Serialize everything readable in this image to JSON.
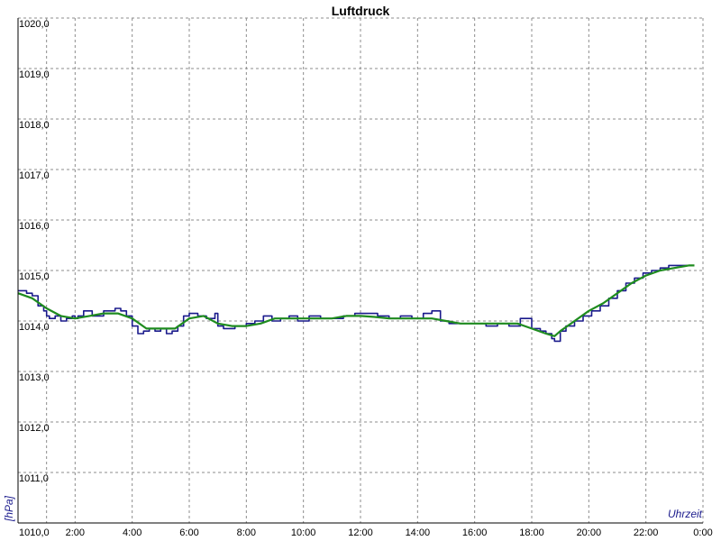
{
  "chart_data": {
    "type": "line",
    "title": "Luftdruck",
    "ylabel": "[hPa]",
    "xlabel": "Uhrzeit",
    "x_tick_labels": [
      "2:00",
      "4:00",
      "6:00",
      "8:00",
      "10:00",
      "12:00",
      "14:00",
      "16:00",
      "18:00",
      "20:00",
      "22:00",
      "0:00"
    ],
    "y_tick_labels": [
      "1010,0",
      "1011,0",
      "1012,0",
      "1013,0",
      "1014,0",
      "1015,0",
      "1016,0",
      "1017,0",
      "1018,0",
      "1019,0",
      "1020,0"
    ],
    "xlim": [
      0,
      24
    ],
    "ylim": [
      1010,
      1020
    ],
    "grid": true,
    "colors": {
      "raw": "#1a1a8c",
      "smooth": "#1f8c1f",
      "grid": "#8c8c8c"
    },
    "series": [
      {
        "x": [
          0,
          0.3,
          0.5,
          0.7,
          0.9,
          1.0,
          1.1,
          1.3,
          1.5,
          1.7,
          1.9,
          2.0,
          2.1,
          2.3,
          2.6,
          3.0,
          3.4,
          3.6,
          3.8,
          4.0,
          4.2,
          4.4,
          4.6,
          4.8,
          5.0,
          5.2,
          5.4,
          5.6,
          5.8,
          6.0,
          6.3,
          6.6,
          6.9,
          7.0,
          7.2,
          7.6,
          8.0,
          8.3,
          8.6,
          8.9,
          9.2,
          9.5,
          9.8,
          10.2,
          10.6,
          11.0,
          11.4,
          11.8,
          12.2,
          12.6,
          13.0,
          13.4,
          13.8,
          14.2,
          14.5,
          14.8,
          15.1,
          15.4,
          15.8,
          16.0,
          16.4,
          16.8,
          17.2,
          17.6,
          18.0,
          18.3,
          18.5,
          18.7,
          18.8,
          19.0,
          19.2,
          19.5,
          19.8,
          20.1,
          20.4,
          20.7,
          21.0,
          21.3,
          21.6,
          21.9,
          22.2,
          22.5,
          22.8,
          23.1,
          23.4,
          23.7
        ],
        "y": [
          1014.6,
          1014.55,
          1014.5,
          1014.3,
          1014.2,
          1014.1,
          1014.05,
          1014.1,
          1014.0,
          1014.05,
          1014.1,
          1014.05,
          1014.1,
          1014.2,
          1014.1,
          1014.2,
          1014.25,
          1014.2,
          1014.1,
          1013.9,
          1013.75,
          1013.8,
          1013.85,
          1013.8,
          1013.85,
          1013.75,
          1013.8,
          1013.9,
          1014.1,
          1014.15,
          1014.1,
          1014.05,
          1014.15,
          1013.9,
          1013.85,
          1013.9,
          1013.95,
          1014.0,
          1014.1,
          1014.0,
          1014.05,
          1014.1,
          1014.0,
          1014.1,
          1014.05,
          1014.05,
          1014.1,
          1014.15,
          1014.15,
          1014.1,
          1014.05,
          1014.1,
          1014.05,
          1014.15,
          1014.2,
          1014.0,
          1013.95,
          1013.95,
          1013.95,
          1013.95,
          1013.9,
          1013.95,
          1013.9,
          1014.05,
          1013.85,
          1013.8,
          1013.75,
          1013.65,
          1013.6,
          1013.8,
          1013.9,
          1014.0,
          1014.1,
          1014.2,
          1014.3,
          1014.45,
          1014.6,
          1014.75,
          1014.85,
          1014.95,
          1015.0,
          1015.05,
          1015.1,
          1015.1,
          1015.1,
          1015.1
        ]
      },
      {
        "x": [
          0,
          0.5,
          1.0,
          1.5,
          2.0,
          2.5,
          3.0,
          3.5,
          4.0,
          4.5,
          5.0,
          5.5,
          6.0,
          6.5,
          7.0,
          7.5,
          8.0,
          8.5,
          9.0,
          9.5,
          10.0,
          10.5,
          11.0,
          11.5,
          12.0,
          12.5,
          13.0,
          13.5,
          14.0,
          14.5,
          15.0,
          15.5,
          16.0,
          16.5,
          17.0,
          17.5,
          18.0,
          18.5,
          18.8,
          19.0,
          19.5,
          20.0,
          20.5,
          21.0,
          21.5,
          22.0,
          22.5,
          23.0,
          23.5,
          23.7
        ],
        "y": [
          1014.55,
          1014.45,
          1014.25,
          1014.1,
          1014.05,
          1014.1,
          1014.15,
          1014.15,
          1014.05,
          1013.85,
          1013.85,
          1013.85,
          1014.05,
          1014.1,
          1013.95,
          1013.9,
          1013.9,
          1013.95,
          1014.05,
          1014.05,
          1014.05,
          1014.05,
          1014.05,
          1014.1,
          1014.1,
          1014.08,
          1014.05,
          1014.05,
          1014.05,
          1014.05,
          1014.0,
          1013.95,
          1013.95,
          1013.95,
          1013.95,
          1013.95,
          1013.85,
          1013.75,
          1013.7,
          1013.8,
          1014.0,
          1014.2,
          1014.35,
          1014.55,
          1014.75,
          1014.9,
          1015.0,
          1015.05,
          1015.1,
          1015.1
        ]
      }
    ]
  }
}
